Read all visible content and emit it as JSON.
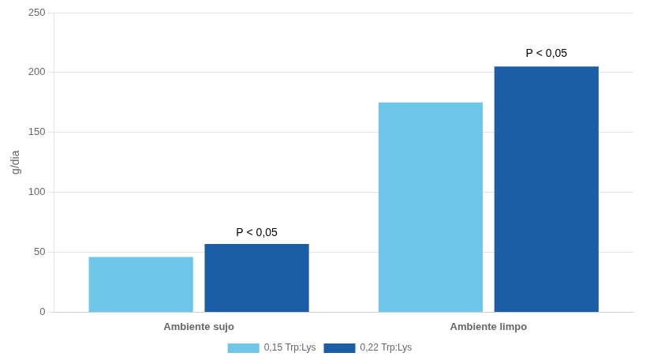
{
  "chart_data": {
    "type": "bar",
    "categories": [
      "Ambiente sujo",
      "Ambiente limpo"
    ],
    "series": [
      {
        "name": "0,15 Trp:Lys",
        "color": "#6EC6E8",
        "values": [
          46,
          175
        ]
      },
      {
        "name": "0,22 Trp:Lys",
        "color": "#1B5EA6",
        "values": [
          57,
          205
        ]
      }
    ],
    "ylabel": "g/dia",
    "ylim": [
      0,
      250
    ],
    "yticks": [
      0,
      50,
      100,
      150,
      200,
      250
    ],
    "grid": true,
    "legend": "bottom",
    "annotations": [
      {
        "category": "Ambiente sujo",
        "text": "P < 0,05",
        "y": 60
      },
      {
        "category": "Ambiente limpo",
        "text": "P < 0,05",
        "y": 210
      }
    ]
  }
}
